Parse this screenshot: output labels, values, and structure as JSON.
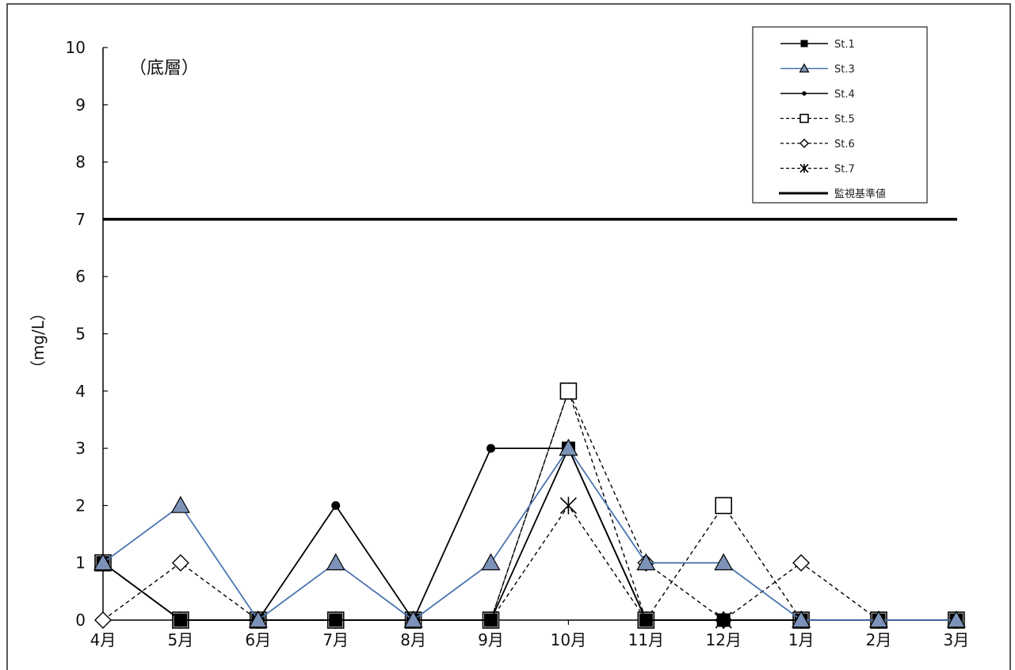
{
  "chart_data": {
    "type": "line",
    "annotation": "（底層）",
    "ylabel": "（mg/L）",
    "xlabel": "",
    "title": "",
    "ylim": [
      0,
      10
    ],
    "yticks": [
      "0",
      "1",
      "2",
      "3",
      "4",
      "5",
      "6",
      "7",
      "8",
      "9",
      "10"
    ],
    "categories": [
      "4月",
      "5月",
      "6月",
      "7月",
      "8月",
      "9月",
      "10月",
      "11月",
      "12月",
      "1月",
      "2月",
      "3月"
    ],
    "grid": false,
    "legend_position": "top-right",
    "series": [
      {
        "name": "St.1",
        "color": "#000000",
        "dash": false,
        "marker": "square-filled",
        "values": [
          1,
          0,
          0,
          0,
          0,
          0,
          3,
          0,
          0,
          0,
          0,
          0
        ]
      },
      {
        "name": "St.3",
        "color": "#4a74b0",
        "dash": false,
        "marker": "triangle",
        "values": [
          1,
          2,
          0,
          1,
          0,
          1,
          3,
          1,
          1,
          0,
          0,
          0
        ]
      },
      {
        "name": "St.4",
        "color": "#000000",
        "dash": false,
        "marker": "circle-filled",
        "values": [
          1,
          0,
          0,
          2,
          0,
          3,
          3,
          0,
          0,
          0,
          0,
          0
        ]
      },
      {
        "name": "St.5",
        "color": "#000000",
        "dash": true,
        "marker": "square-open",
        "values": [
          1,
          0,
          0,
          0,
          0,
          0,
          4,
          0,
          2,
          0,
          0,
          0
        ]
      },
      {
        "name": "St.6",
        "color": "#000000",
        "dash": true,
        "marker": "diamond-open",
        "values": [
          0,
          1,
          0,
          0,
          0,
          0,
          4,
          1,
          0,
          1,
          0,
          0
        ]
      },
      {
        "name": "St.7",
        "color": "#000000",
        "dash": true,
        "marker": "asterisk",
        "values": [
          1,
          0,
          0,
          0,
          0,
          0,
          2,
          0,
          0,
          0,
          0,
          0
        ]
      }
    ],
    "reference_line": {
      "name": "監視基準値",
      "value": 7,
      "color": "#000000"
    }
  }
}
